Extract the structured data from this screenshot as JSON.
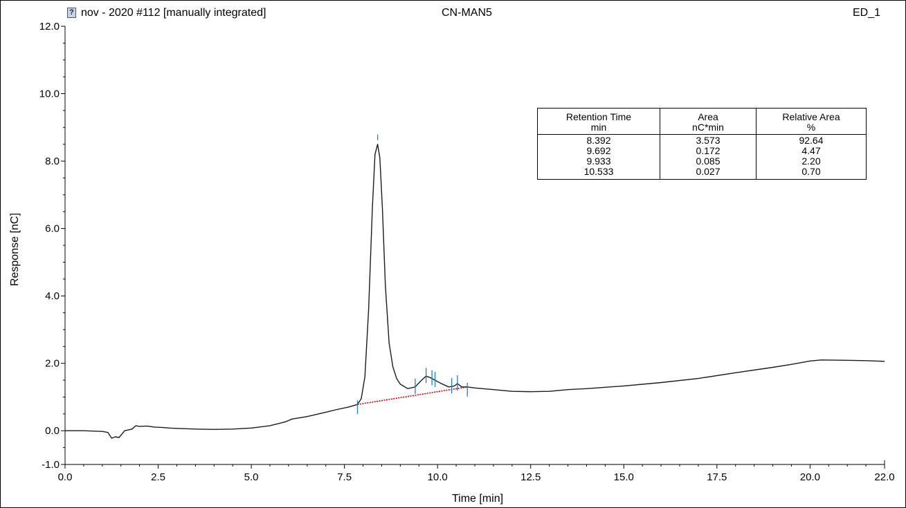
{
  "header": {
    "sample": "nov - 2020 #112 [manually integrated]",
    "method": "CN-MAN5",
    "channel": "ED_1",
    "icon": "unknown-status-icon"
  },
  "colors": {
    "trace": "#1a1a1a",
    "baseline": "#e00000",
    "peak_marker": "#1f7fbf"
  },
  "chart_data": {
    "type": "line",
    "xlabel": "Time [min]",
    "ylabel": "Response [nC]",
    "xlim": [
      0.0,
      22.0
    ],
    "ylim": [
      -1.0,
      12.0
    ],
    "x_ticks": [
      "0.0",
      "2.5",
      "5.0",
      "7.5",
      "10.0",
      "12.5",
      "15.0",
      "17.5",
      "20.0",
      "22.0"
    ],
    "x_tick_values": [
      0.0,
      2.5,
      5.0,
      7.5,
      10.0,
      12.5,
      15.0,
      17.5,
      20.0,
      22.0
    ],
    "y_ticks": [
      "-1.0",
      "0.0",
      "2.0",
      "4.0",
      "6.0",
      "8.0",
      "10.0",
      "12.0"
    ],
    "y_tick_values": [
      -1.0,
      0.0,
      2.0,
      4.0,
      6.0,
      8.0,
      10.0,
      12.0
    ],
    "grid": false,
    "series": [
      {
        "x": [
          0.0,
          0.5,
          1.0,
          1.15,
          1.25,
          1.35,
          1.45,
          1.6,
          1.8,
          1.9,
          2.0,
          2.2,
          2.4,
          2.6,
          2.8,
          3.0,
          3.5,
          4.0,
          4.5,
          5.0,
          5.5,
          5.9,
          6.1,
          6.5,
          7.0,
          7.3,
          7.6,
          7.85,
          7.95,
          8.05,
          8.15,
          8.25,
          8.32,
          8.392,
          8.45,
          8.52,
          8.6,
          8.7,
          8.8,
          8.9,
          9.0,
          9.2,
          9.4,
          9.55,
          9.692,
          9.8,
          9.933,
          10.1,
          10.3,
          10.45,
          10.533,
          10.65,
          10.8,
          11.0,
          11.5,
          12.0,
          12.5,
          13.0,
          13.5,
          14.0,
          15.0,
          16.0,
          17.0,
          18.0,
          19.0,
          19.5,
          20.0,
          20.3,
          21.0,
          21.5,
          22.0
        ],
        "y": [
          0.0,
          0.0,
          -0.02,
          -0.05,
          -0.22,
          -0.18,
          -0.2,
          0.0,
          0.05,
          0.15,
          0.13,
          0.14,
          0.11,
          0.1,
          0.08,
          0.07,
          0.05,
          0.04,
          0.05,
          0.08,
          0.15,
          0.26,
          0.35,
          0.42,
          0.55,
          0.63,
          0.7,
          0.78,
          0.95,
          1.6,
          3.6,
          6.6,
          8.2,
          8.5,
          8.1,
          6.6,
          4.3,
          2.6,
          1.9,
          1.55,
          1.38,
          1.25,
          1.3,
          1.48,
          1.62,
          1.58,
          1.5,
          1.4,
          1.3,
          1.33,
          1.4,
          1.3,
          1.3,
          1.27,
          1.22,
          1.17,
          1.16,
          1.17,
          1.22,
          1.25,
          1.33,
          1.43,
          1.55,
          1.72,
          1.88,
          1.97,
          2.07,
          2.1,
          2.09,
          2.08,
          2.06
        ]
      }
    ],
    "baseline_segment": {
      "x": [
        7.85,
        10.8
      ],
      "y": [
        0.78,
        1.3
      ]
    },
    "peak_markers_x": [
      7.85,
      8.392,
      9.4,
      9.692,
      9.85,
      9.933,
      10.38,
      10.533,
      10.8
    ],
    "table": {
      "headers": [
        {
          "line1": "Retention Time",
          "line2": "min"
        },
        {
          "line1": "Area",
          "line2": "nC*min"
        },
        {
          "line1": "Relative Area",
          "line2": "%"
        }
      ],
      "rows": [
        [
          "8.392",
          "3.573",
          "92.64"
        ],
        [
          "9.692",
          "0.172",
          "4.47"
        ],
        [
          "9.933",
          "0.085",
          "2.20"
        ],
        [
          "10.533",
          "0.027",
          "0.70"
        ]
      ]
    }
  }
}
